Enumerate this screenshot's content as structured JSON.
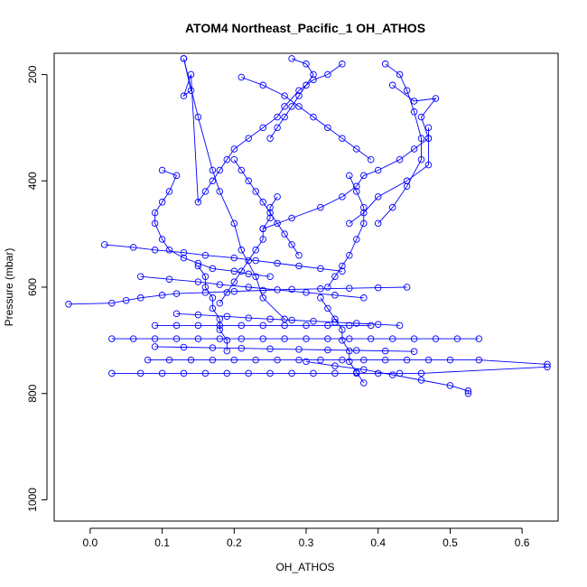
{
  "chart_data": {
    "type": "scatter",
    "title": "ATOM4 Northeast_Pacific_1 OH_ATHOS",
    "xlabel": "OH_ATHOS",
    "ylabel": "Pressure (mbar)",
    "xlim": [
      -0.05,
      0.65
    ],
    "ylim": [
      1040,
      160
    ],
    "y_reversed": true,
    "x_ticks": [
      "0.0",
      "0.1",
      "0.2",
      "0.3",
      "0.4",
      "0.5",
      "0.6"
    ],
    "x_tick_values": [
      0.0,
      0.1,
      0.2,
      0.3,
      0.4,
      0.5,
      0.6
    ],
    "y_ticks": [
      "200",
      "400",
      "600",
      "800",
      "1000"
    ],
    "y_tick_values": [
      200,
      400,
      600,
      800,
      1000
    ],
    "grid": false,
    "legend": "none",
    "marker": "open-circle",
    "connected": true,
    "colors": {
      "series": "#0000ff",
      "axes": "#000000"
    },
    "series": [
      {
        "x": [
          0.42,
          0.45,
          0.48,
          0.46,
          0.47,
          0.47,
          0.44,
          0.4,
          0.38,
          0.36
        ],
        "y": [
          220,
          250,
          245,
          280,
          320,
          370,
          400,
          430,
          460,
          480
        ]
      },
      {
        "x": [
          0.35,
          0.33,
          0.31,
          0.29,
          0.27,
          0.26,
          0.24,
          0.22,
          0.2,
          0.19,
          0.18,
          0.17,
          0.16,
          0.15,
          0.14,
          0.13,
          0.14,
          0.13
        ],
        "y": [
          180,
          200,
          210,
          230,
          260,
          280,
          300,
          320,
          340,
          360,
          380,
          400,
          420,
          440,
          200,
          240,
          230,
          170
        ]
      },
      {
        "x": [
          0.13,
          0.15,
          0.17,
          0.18,
          0.2,
          0.21,
          0.23,
          0.24,
          0.27
        ],
        "y": [
          170,
          280,
          380,
          420,
          480,
          530,
          580,
          620,
          660
        ]
      },
      {
        "x": [
          0.1,
          0.12,
          0.11,
          0.1,
          0.09,
          0.09,
          0.1,
          0.11,
          0.13,
          0.15,
          0.17,
          0.2,
          0.22,
          0.25
        ],
        "y": [
          380,
          390,
          420,
          440,
          460,
          480,
          510,
          530,
          545,
          555,
          565,
          570,
          575,
          580
        ]
      },
      {
        "x": [
          -0.03,
          0.03,
          0.05,
          0.07,
          0.1,
          0.12,
          0.16,
          0.2,
          0.24,
          0.28,
          0.32,
          0.36,
          0.4,
          0.44
        ],
        "y": [
          632,
          630,
          625,
          620,
          615,
          612,
          610,
          608,
          606,
          604,
          603,
          602,
          601,
          600
        ]
      },
      {
        "x": [
          0.03,
          0.06,
          0.09,
          0.12,
          0.15,
          0.18,
          0.21,
          0.24,
          0.27,
          0.3,
          0.33,
          0.36,
          0.39,
          0.42,
          0.45,
          0.48,
          0.51,
          0.54
        ],
        "y": [
          697,
          697,
          697,
          697,
          697,
          697,
          697,
          697,
          697,
          697,
          697,
          697,
          697,
          697,
          697,
          697,
          697,
          697
        ]
      },
      {
        "x": [
          0.08,
          0.11,
          0.14,
          0.17,
          0.2,
          0.23,
          0.26,
          0.29,
          0.32,
          0.35,
          0.38,
          0.41,
          0.44,
          0.47,
          0.5,
          0.54,
          0.635
        ],
        "y": [
          737,
          737,
          737,
          737,
          737,
          737,
          737,
          737,
          737,
          737,
          737,
          737,
          737,
          737,
          737,
          737,
          745
        ]
      },
      {
        "x": [
          0.03,
          0.07,
          0.1,
          0.13,
          0.16,
          0.19,
          0.22,
          0.25,
          0.28,
          0.31,
          0.34,
          0.37,
          0.4,
          0.43,
          0.46,
          0.635
        ],
        "y": [
          762,
          762,
          762,
          762,
          762,
          762,
          762,
          762,
          762,
          762,
          762,
          762,
          762,
          762,
          762,
          750
        ]
      },
      {
        "x": [
          0.09,
          0.12,
          0.15,
          0.18,
          0.21,
          0.24,
          0.27,
          0.3,
          0.33,
          0.36,
          0.39
        ],
        "y": [
          672,
          672,
          672,
          672,
          672,
          672,
          672,
          672,
          672,
          672,
          672
        ]
      },
      {
        "x": [
          0.3,
          0.34,
          0.38,
          0.42,
          0.46,
          0.5,
          0.525,
          0.525
        ],
        "y": [
          740,
          748,
          755,
          765,
          775,
          785,
          795,
          800
        ]
      },
      {
        "x": [
          0.21,
          0.24,
          0.27,
          0.29,
          0.31,
          0.33,
          0.35,
          0.37,
          0.39
        ],
        "y": [
          205,
          220,
          240,
          260,
          280,
          300,
          320,
          340,
          360
        ]
      },
      {
        "x": [
          0.36,
          0.37,
          0.38,
          0.38,
          0.37,
          0.36,
          0.35,
          0.34,
          0.33
        ],
        "y": [
          390,
          420,
          450,
          480,
          510,
          540,
          560,
          580,
          600
        ]
      },
      {
        "x": [
          0.26,
          0.25,
          0.25,
          0.24,
          0.24,
          0.23,
          0.22,
          0.21,
          0.2,
          0.19,
          0.18
        ],
        "y": [
          430,
          450,
          470,
          490,
          510,
          530,
          550,
          570,
          590,
          610,
          630
        ]
      },
      {
        "x": [
          0.41,
          0.43,
          0.44,
          0.45,
          0.46,
          0.46,
          0.44,
          0.42,
          0.4
        ],
        "y": [
          180,
          200,
          230,
          270,
          320,
          360,
          410,
          450,
          480
        ]
      },
      {
        "x": [
          0.02,
          0.06,
          0.09,
          0.13,
          0.16,
          0.2,
          0.23,
          0.26,
          0.29,
          0.32,
          0.35
        ],
        "y": [
          520,
          525,
          530,
          535,
          540,
          545,
          550,
          555,
          560,
          565,
          570
        ]
      },
      {
        "x": [
          0.24,
          0.28,
          0.32,
          0.35,
          0.37,
          0.38,
          0.4,
          0.43,
          0.45,
          0.47,
          0.47
        ],
        "y": [
          490,
          470,
          450,
          430,
          410,
          390,
          380,
          360,
          340,
          320,
          300
        ]
      },
      {
        "x": [
          0.07,
          0.11,
          0.15,
          0.18,
          0.22,
          0.26,
          0.3,
          0.34,
          0.38
        ],
        "y": [
          580,
          585,
          590,
          595,
          600,
          605,
          610,
          615,
          620
        ]
      },
      {
        "x": [
          0.12,
          0.15,
          0.19,
          0.22,
          0.25,
          0.28,
          0.31,
          0.34,
          0.37,
          0.4,
          0.43
        ],
        "y": [
          650,
          652,
          655,
          658,
          660,
          662,
          664,
          666,
          668,
          670,
          672
        ]
      },
      {
        "x": [
          0.09,
          0.13,
          0.17,
          0.21,
          0.25,
          0.29,
          0.33,
          0.37,
          0.41,
          0.45
        ],
        "y": [
          712,
          713,
          714,
          715,
          716,
          717,
          718,
          719,
          720,
          721
        ]
      },
      {
        "x": [
          0.28,
          0.3,
          0.31,
          0.3,
          0.29,
          0.28,
          0.27,
          0.26,
          0.25
        ],
        "y": [
          170,
          180,
          200,
          220,
          240,
          260,
          280,
          300,
          320
        ]
      },
      {
        "x": [
          0.2,
          0.21,
          0.22,
          0.23,
          0.24,
          0.25,
          0.26,
          0.27,
          0.28,
          0.29
        ],
        "y": [
          360,
          380,
          400,
          420,
          440,
          460,
          480,
          500,
          520,
          540
        ]
      },
      {
        "x": [
          0.15,
          0.16,
          0.16,
          0.17,
          0.17,
          0.18,
          0.18,
          0.19,
          0.19
        ],
        "y": [
          560,
          580,
          600,
          620,
          640,
          660,
          680,
          700,
          720
        ]
      },
      {
        "x": [
          0.32,
          0.33,
          0.34,
          0.35,
          0.35,
          0.36,
          0.36,
          0.37,
          0.38
        ],
        "y": [
          620,
          640,
          660,
          680,
          700,
          720,
          740,
          760,
          780
        ]
      }
    ]
  }
}
